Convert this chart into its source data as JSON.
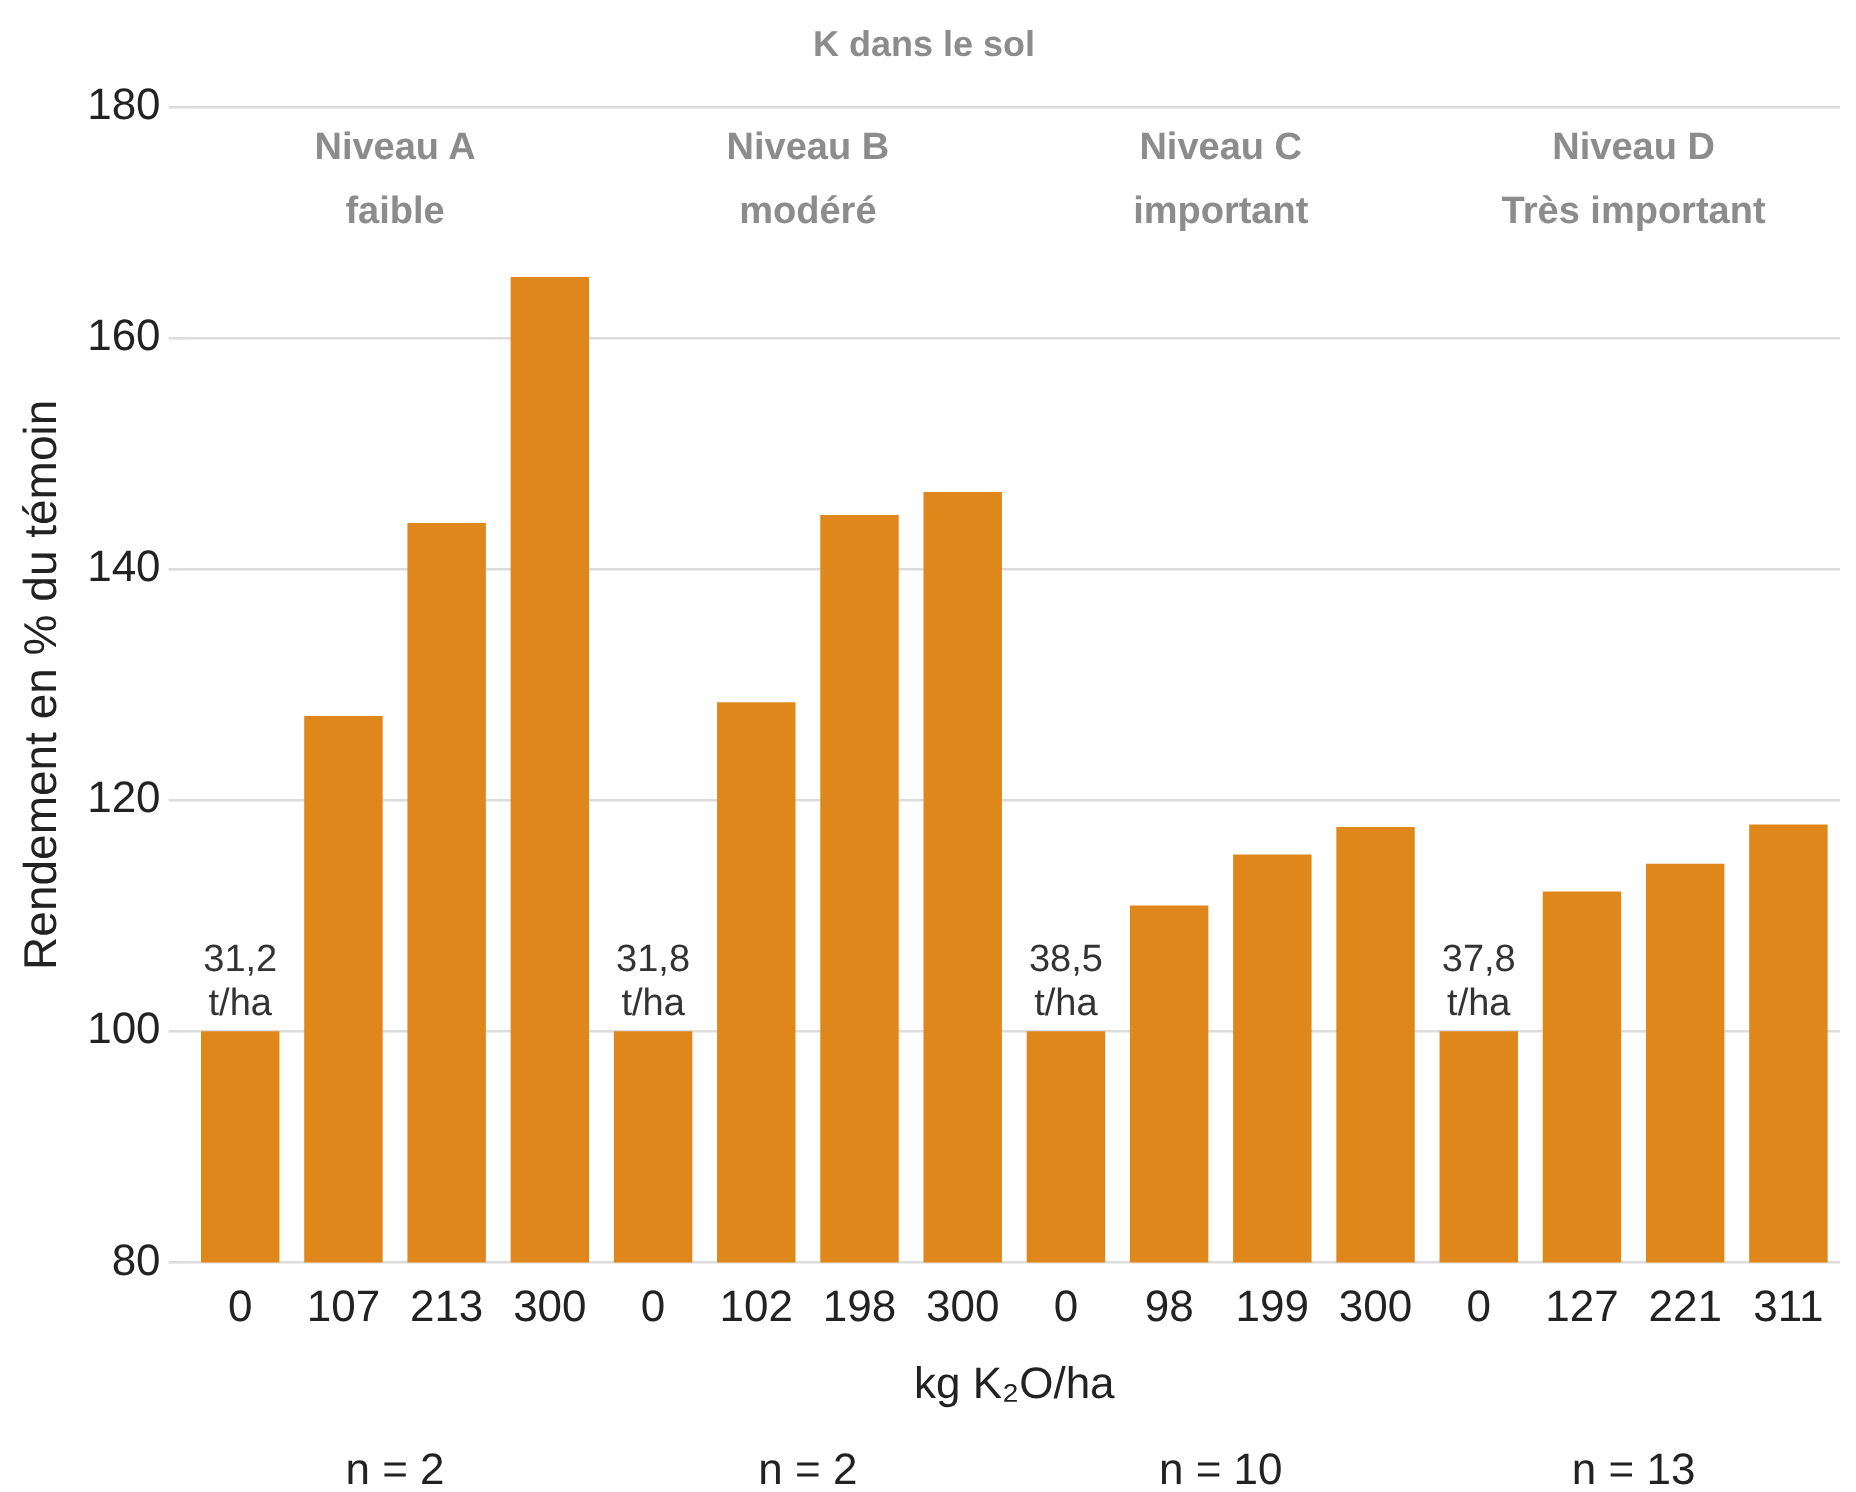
{
  "chart_data": {
    "type": "bar",
    "title": "K dans le sol",
    "ylabel": "Rendement en % du témoin",
    "xlabel": "kg K₂O/ha",
    "categories": [
      "0",
      "107",
      "213",
      "300",
      "0",
      "102",
      "198",
      "300",
      "0",
      "98",
      "199",
      "300",
      "0",
      "127",
      "221",
      "311"
    ],
    "values": [
      100,
      127.3,
      144.0,
      165.3,
      100,
      128.5,
      144.7,
      146.7,
      100,
      110.9,
      115.3,
      117.7,
      100,
      112.1,
      114.5,
      117.9
    ],
    "color": "#e0871b",
    "ylim": [
      80,
      180
    ],
    "yticks": [
      80,
      100,
      120,
      140,
      160,
      180
    ],
    "grid": "y",
    "legend": false,
    "annotations": [
      "Niveau A\nfaible",
      "Niveau B\nmodéré",
      "Niveau C\nimportant",
      "Niveau D\nTrès important",
      "n = 2",
      "n = 2",
      "n = 10",
      "n = 13",
      "31,2\nt/ha",
      "31,8\nt/ha",
      "38,5\nt/ha",
      "37,8\nt/ha"
    ]
  }
}
